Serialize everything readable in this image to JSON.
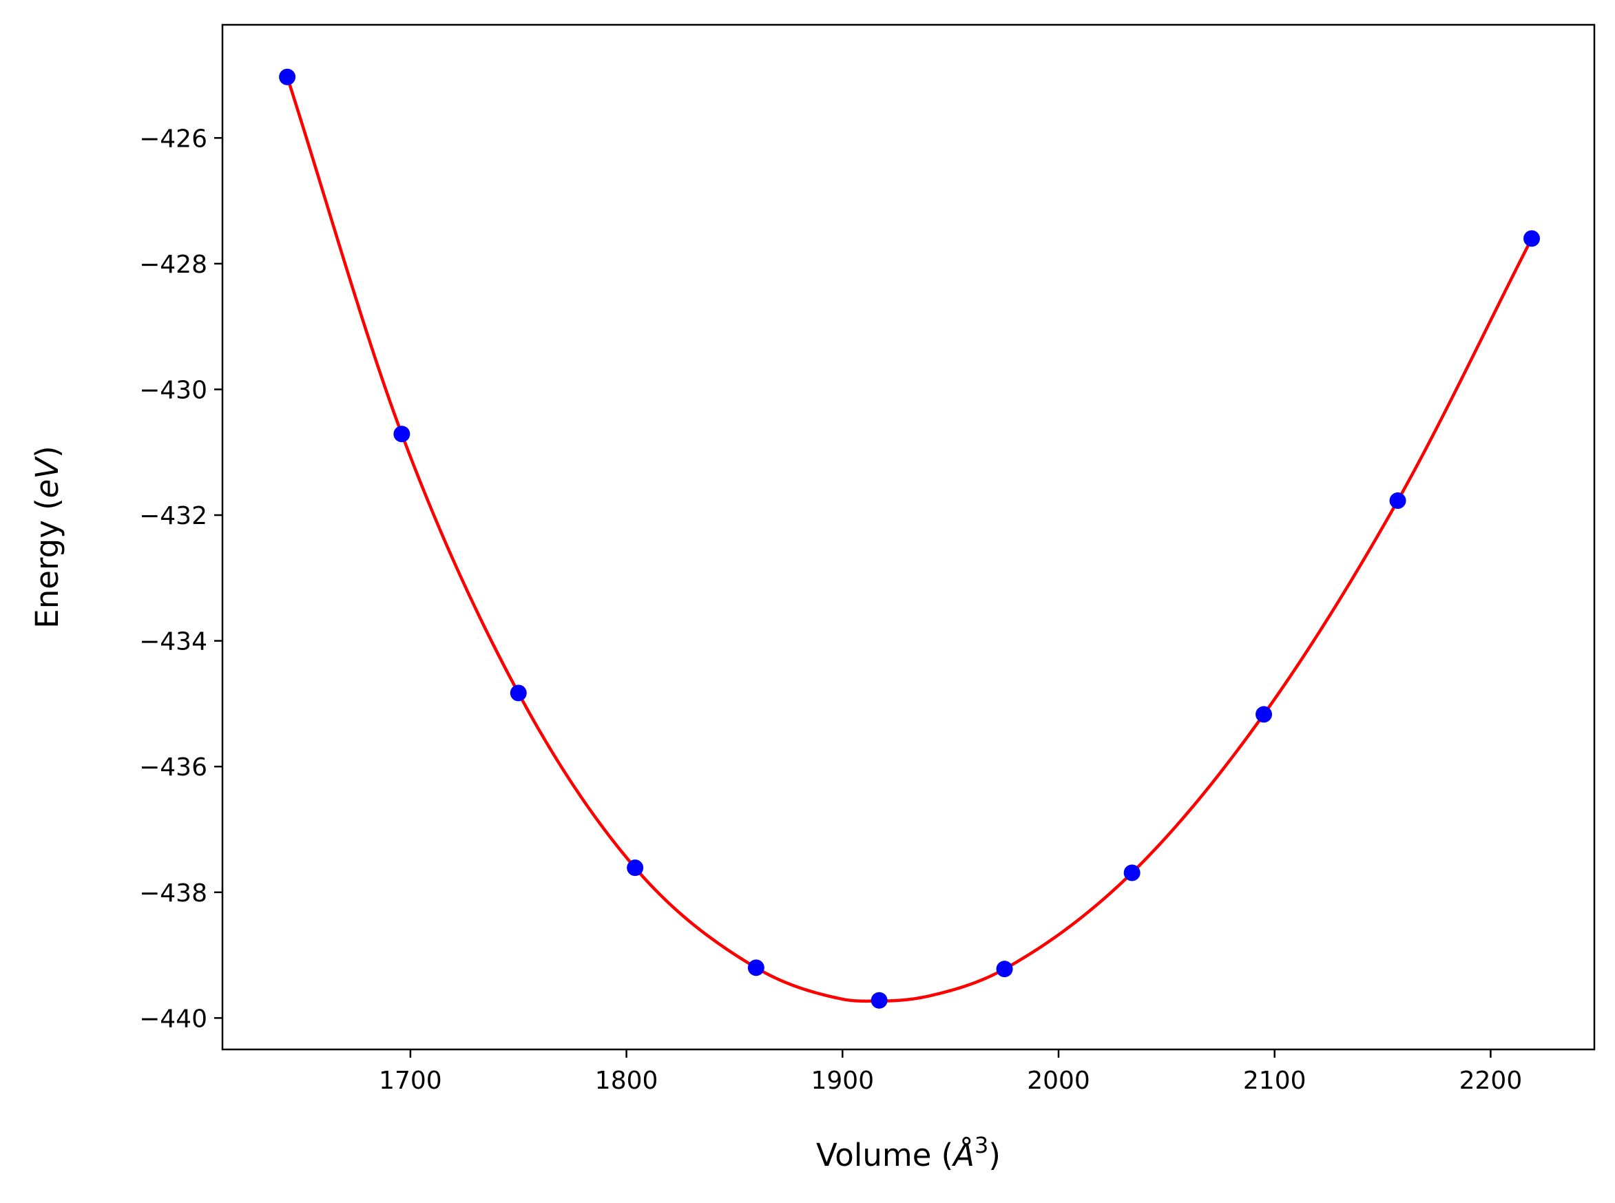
{
  "chart_data": {
    "type": "scatter",
    "title": "",
    "xlabel": "Volume (Å³)",
    "ylabel": "Energy (eV)",
    "xlabel_parts": {
      "text": "Volume (",
      "italic": "Å",
      "sup": "3",
      "close": ")"
    },
    "ylabel_parts": {
      "text": "Energy (",
      "italic": "eV",
      "close": ")"
    },
    "xlim": [
      1613,
      2248
    ],
    "ylim": [
      -440.5,
      -424.2
    ],
    "xticks": [
      1700,
      1800,
      1900,
      2000,
      2100,
      2200
    ],
    "yticks": [
      -426,
      -428,
      -430,
      -432,
      -434,
      -436,
      -438,
      -440
    ],
    "xtick_labels": [
      "1700",
      "1800",
      "1900",
      "2000",
      "2100",
      "2200"
    ],
    "ytick_labels": [
      "−426",
      "−428",
      "−430",
      "−432",
      "−434",
      "−436",
      "−438",
      "−440"
    ],
    "grid": false,
    "legend": "none",
    "series": [
      {
        "kind": "points",
        "color": "#0000ff",
        "x": [
          1643,
          1696,
          1750,
          1804,
          1860,
          1917,
          1975,
          2034,
          2095,
          2157,
          2219
        ],
        "y": [
          -425.03,
          -430.71,
          -434.83,
          -437.61,
          -439.2,
          -439.72,
          -439.22,
          -437.69,
          -435.17,
          -431.77,
          -427.6
        ]
      },
      {
        "kind": "fit-curve",
        "color": "#ff0000",
        "x": [
          1643,
          1696,
          1750,
          1804,
          1860,
          1900,
          1917,
          1940,
          1975,
          2034,
          2095,
          2157,
          2219
        ],
        "y": [
          -425.03,
          -430.71,
          -434.83,
          -437.61,
          -439.2,
          -439.7,
          -439.73,
          -439.65,
          -439.22,
          -437.69,
          -435.17,
          -431.77,
          -427.6
        ]
      }
    ]
  }
}
